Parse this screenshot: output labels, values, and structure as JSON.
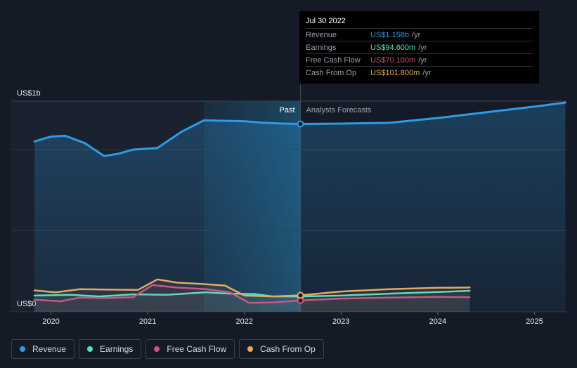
{
  "chart_data": {
    "type": "line",
    "y_top_label": "US$1b",
    "y_zero_label": "US$0",
    "past_label": "Past",
    "forecast_label": "Analysts Forecasts",
    "x_ticks": [
      "2020",
      "2021",
      "2022",
      "2023",
      "2024",
      "2025"
    ],
    "ylim": [
      0,
      1300
    ],
    "grid": true,
    "legend_position": "bottom-left",
    "past_end": 2022.58,
    "series": [
      {
        "name": "Revenue",
        "color": "#2e9be6",
        "points": [
          [
            2019.83,
            1050
          ],
          [
            2020.0,
            1080
          ],
          [
            2020.15,
            1085
          ],
          [
            2020.35,
            1040
          ],
          [
            2020.55,
            960
          ],
          [
            2020.7,
            975
          ],
          [
            2020.85,
            1000
          ],
          [
            2021.1,
            1010
          ],
          [
            2021.35,
            1110
          ],
          [
            2021.58,
            1180
          ],
          [
            2021.75,
            1178
          ],
          [
            2022.0,
            1175
          ],
          [
            2022.2,
            1165
          ],
          [
            2022.4,
            1160
          ],
          [
            2022.58,
            1158
          ],
          [
            2023.0,
            1160
          ],
          [
            2023.5,
            1165
          ],
          [
            2024.0,
            1195
          ],
          [
            2024.5,
            1230
          ],
          [
            2025.0,
            1265
          ],
          [
            2025.32,
            1290
          ]
        ]
      },
      {
        "name": "Earnings",
        "color": "#57e0c4",
        "points": [
          [
            2019.83,
            100
          ],
          [
            2020.2,
            105
          ],
          [
            2020.5,
            95
          ],
          [
            2020.85,
            108
          ],
          [
            2021.2,
            105
          ],
          [
            2021.6,
            120
          ],
          [
            2021.85,
            112
          ],
          [
            2022.1,
            110
          ],
          [
            2022.3,
            95
          ],
          [
            2022.58,
            94.6
          ],
          [
            2023.0,
            100
          ],
          [
            2023.5,
            112
          ],
          [
            2024.0,
            122
          ],
          [
            2024.33,
            130
          ]
        ]
      },
      {
        "name": "Free Cash Flow",
        "color": "#c9508a",
        "points": [
          [
            2019.83,
            75
          ],
          [
            2020.1,
            65
          ],
          [
            2020.3,
            88
          ],
          [
            2020.55,
            85
          ],
          [
            2020.85,
            90
          ],
          [
            2021.05,
            165
          ],
          [
            2021.3,
            150
          ],
          [
            2021.6,
            140
          ],
          [
            2021.85,
            120
          ],
          [
            2022.05,
            55
          ],
          [
            2022.3,
            58
          ],
          [
            2022.58,
            70.1
          ],
          [
            2023.0,
            82
          ],
          [
            2023.5,
            88
          ],
          [
            2024.0,
            92
          ],
          [
            2024.33,
            90
          ]
        ]
      },
      {
        "name": "Cash From Op",
        "color": "#e5a960",
        "points": [
          [
            2019.83,
            132
          ],
          [
            2020.05,
            120
          ],
          [
            2020.3,
            140
          ],
          [
            2020.6,
            137
          ],
          [
            2020.9,
            135
          ],
          [
            2021.1,
            200
          ],
          [
            2021.3,
            180
          ],
          [
            2021.55,
            172
          ],
          [
            2021.8,
            162
          ],
          [
            2022.0,
            100
          ],
          [
            2022.3,
            95
          ],
          [
            2022.58,
            101.8
          ],
          [
            2023.0,
            125
          ],
          [
            2023.5,
            140
          ],
          [
            2024.0,
            148
          ],
          [
            2024.33,
            150
          ]
        ]
      }
    ]
  },
  "tooltip": {
    "date": "Jul 30 2022",
    "rows": [
      {
        "name": "Revenue",
        "value": "US$1.158b",
        "unit": "/yr",
        "color": "#2e9be6"
      },
      {
        "name": "Earnings",
        "value": "US$94.600m",
        "unit": "/yr",
        "color": "#57e0c4"
      },
      {
        "name": "Free Cash Flow",
        "value": "US$70.100m",
        "unit": "/yr",
        "color": "#c9508a"
      },
      {
        "name": "Cash From Op",
        "value": "US$101.800m",
        "unit": "/yr",
        "color": "#e5a960"
      }
    ]
  },
  "legend": [
    {
      "label": "Revenue",
      "color": "#2e9be6"
    },
    {
      "label": "Earnings",
      "color": "#57e0c4"
    },
    {
      "label": "Free Cash Flow",
      "color": "#c9508a"
    },
    {
      "label": "Cash From Op",
      "color": "#e5a960"
    }
  ]
}
